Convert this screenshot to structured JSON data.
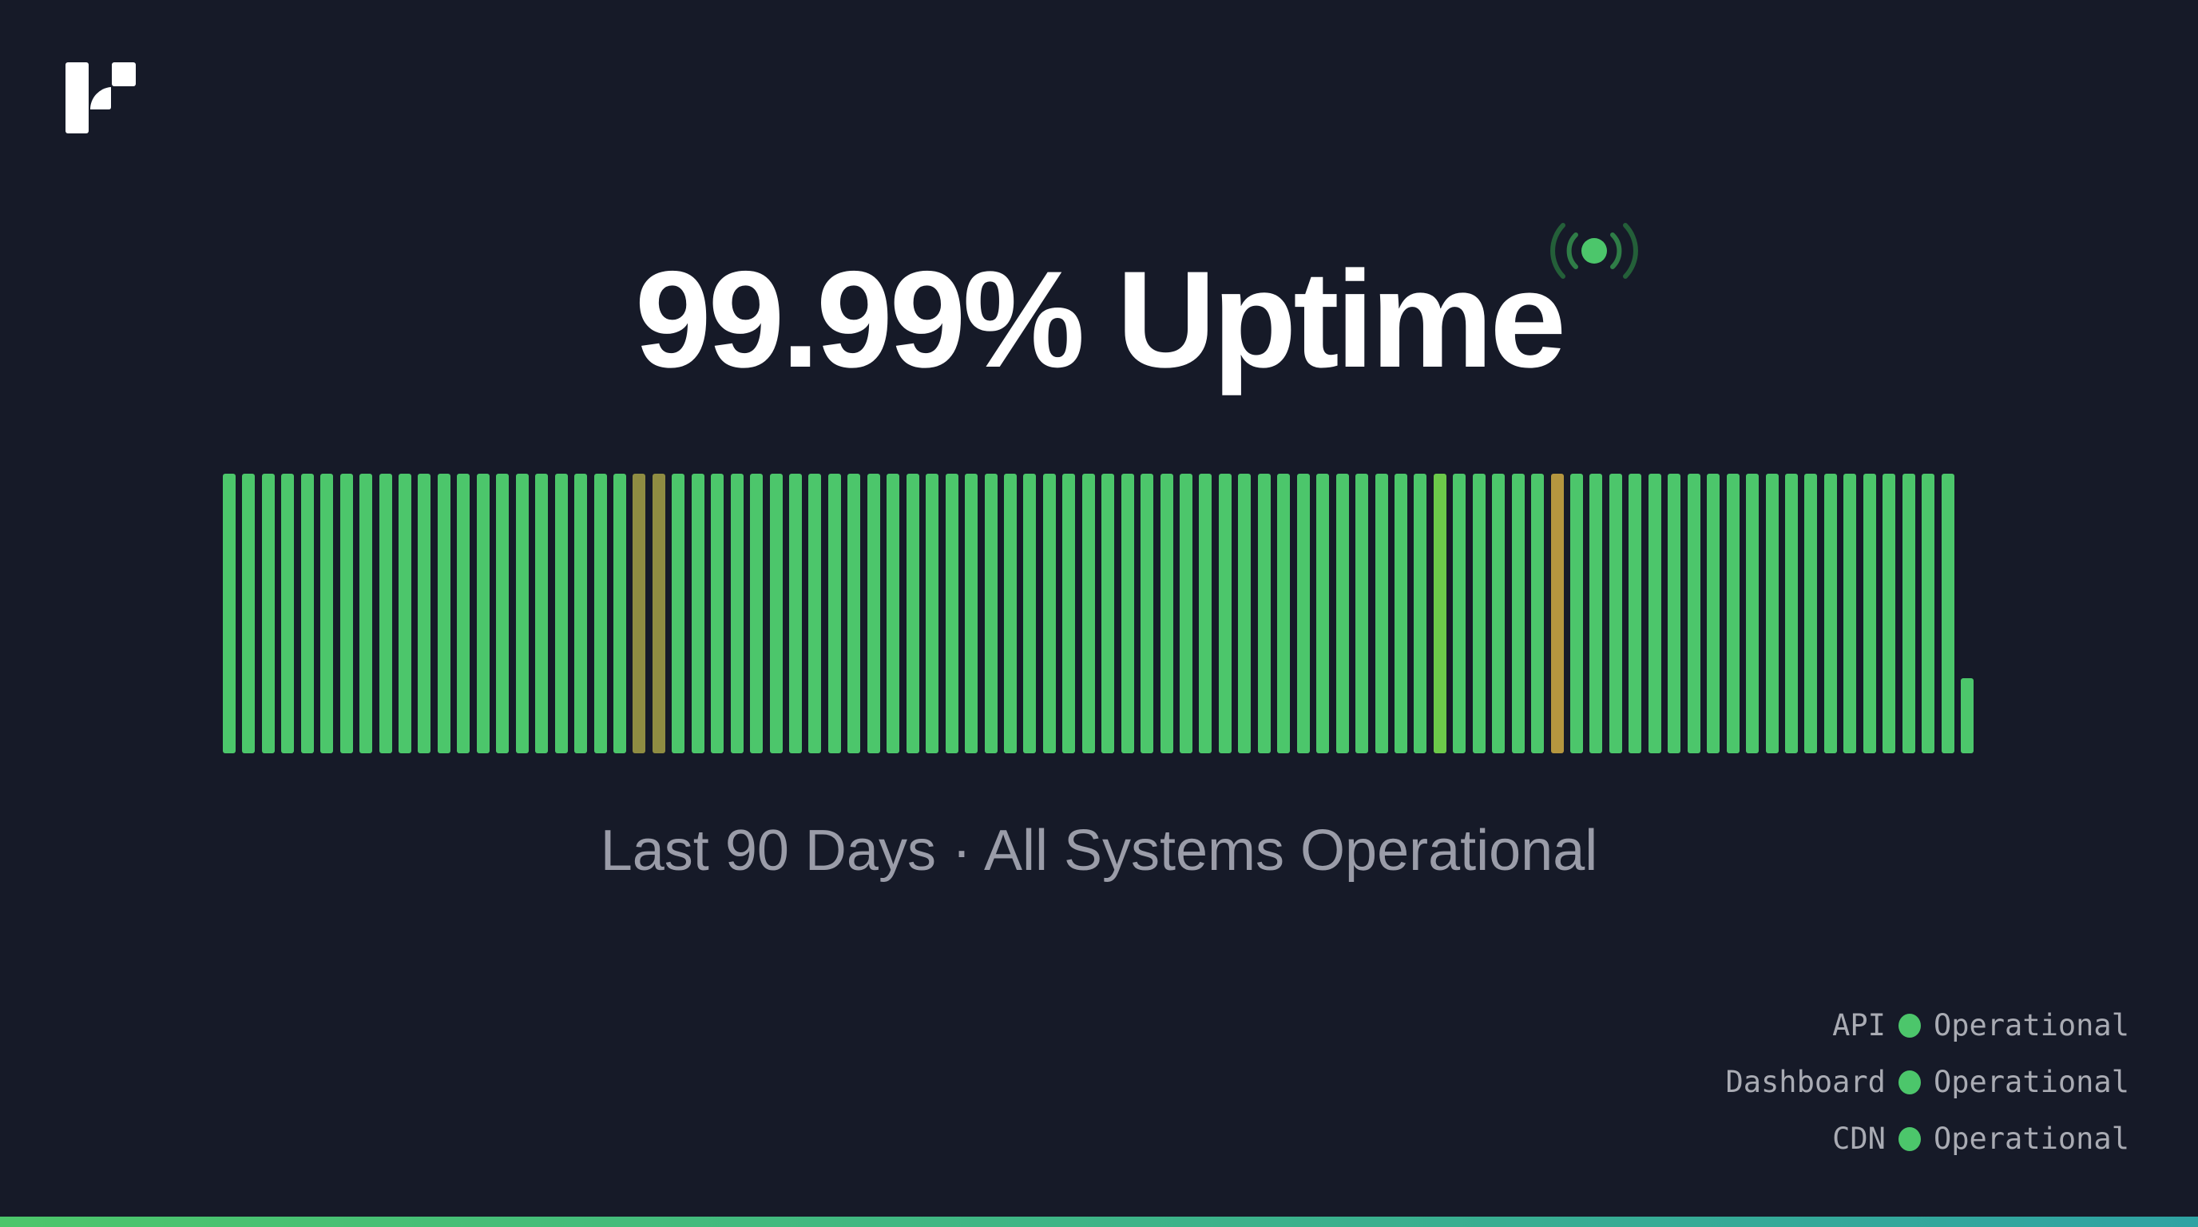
{
  "header": {
    "title": "99.99% Uptime",
    "logo_icon": "brand-logo",
    "live_icon": "broadcast-signal-icon"
  },
  "chart_data": {
    "type": "bar",
    "title": "",
    "period_days": 90,
    "bar_count": 90,
    "status_colors": {
      "operational": "#4cc66b",
      "minor": "#6cc94a",
      "degraded": "#8f8c42",
      "partial": "#b5963f"
    },
    "day_status": {
      "21": "degraded",
      "22": "degraded",
      "62": "minor",
      "68": "partial"
    },
    "last_day_fraction": 0.27
  },
  "subtitle": "Last 90 Days · All Systems Operational",
  "services": [
    {
      "name": "API",
      "status": "Operational",
      "color": "#4cc66b"
    },
    {
      "name": "Dashboard",
      "status": "Operational",
      "color": "#4cc66b"
    },
    {
      "name": "CDN",
      "status": "Operational",
      "color": "#4cc66b"
    }
  ],
  "colors": {
    "background": "#161a28",
    "accent": "#4cc66b",
    "accent_end": "#2fa3a3"
  }
}
